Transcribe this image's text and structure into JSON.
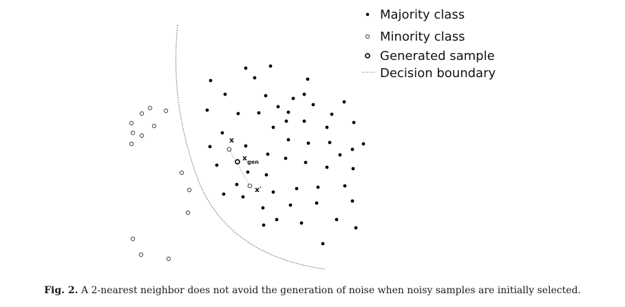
{
  "legend": {
    "majority_label": "Majority class",
    "minority_label": "Minority class",
    "generated_label": "Generated sample",
    "boundary_label": "Decision boundary"
  },
  "labels": {
    "x": "x",
    "x_gen_main": "x",
    "x_gen_sub": "gen",
    "x_prime": "x′"
  },
  "caption": {
    "prefix": "Fig. 2.",
    "text": " A 2-nearest neighbor does not avoid the generation of noise when noisy samples are initially selected."
  },
  "colors": {
    "majority": "#000000",
    "minority_stroke": "#555555",
    "boundary": "#888888"
  }
}
